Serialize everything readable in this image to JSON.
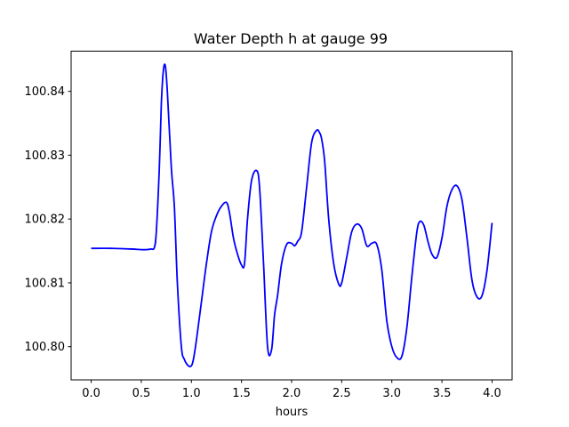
{
  "chart_data": {
    "type": "line",
    "title": "Water Depth h at gauge 99",
    "xlabel": "hours",
    "ylabel": "",
    "xlim": [
      -0.2,
      4.2
    ],
    "ylim": [
      100.7948,
      100.8463
    ],
    "xticks": [
      0.0,
      0.5,
      1.0,
      1.5,
      2.0,
      2.5,
      3.0,
      3.5,
      4.0
    ],
    "xtick_labels": [
      "0.0",
      "0.5",
      "1.0",
      "1.5",
      "2.0",
      "2.5",
      "3.0",
      "3.5",
      "4.0"
    ],
    "yticks": [
      100.8,
      100.81,
      100.82,
      100.83,
      100.84
    ],
    "ytick_labels": [
      "100.80",
      "100.81",
      "100.82",
      "100.83",
      "100.84"
    ],
    "grid": false,
    "legend": "none",
    "series": [
      {
        "color": "#0000ff",
        "x": [
          0.0,
          0.2,
          0.4,
          0.5,
          0.55,
          0.6,
          0.63,
          0.65,
          0.68,
          0.7,
          0.72,
          0.74,
          0.76,
          0.8,
          0.83,
          0.86,
          0.9,
          0.93,
          0.97,
          1.0,
          1.02,
          1.05,
          1.1,
          1.15,
          1.2,
          1.25,
          1.3,
          1.35,
          1.38,
          1.42,
          1.46,
          1.5,
          1.53,
          1.56,
          1.6,
          1.65,
          1.68,
          1.72,
          1.76,
          1.8,
          1.83,
          1.86,
          1.9,
          1.95,
          2.0,
          2.03,
          2.06,
          2.1,
          2.15,
          2.2,
          2.25,
          2.28,
          2.3,
          2.33,
          2.37,
          2.42,
          2.47,
          2.5,
          2.55,
          2.6,
          2.65,
          2.7,
          2.75,
          2.8,
          2.85,
          2.9,
          2.95,
          3.0,
          3.05,
          3.1,
          3.15,
          3.2,
          3.25,
          3.28,
          3.32,
          3.36,
          3.4,
          3.45,
          3.5,
          3.55,
          3.6,
          3.65,
          3.7,
          3.75,
          3.8,
          3.85,
          3.9,
          3.95,
          4.0
        ],
        "y": [
          100.8154,
          100.8154,
          100.8153,
          100.8152,
          100.8152,
          100.8153,
          100.8155,
          100.818,
          100.828,
          100.838,
          100.8432,
          100.844,
          100.84,
          100.828,
          100.822,
          100.81,
          100.8,
          100.798,
          100.797,
          100.797,
          100.798,
          100.801,
          100.807,
          100.813,
          100.818,
          100.8205,
          100.822,
          100.8226,
          100.821,
          100.817,
          100.8145,
          100.8128,
          100.813,
          100.82,
          100.826,
          100.8276,
          100.825,
          100.813,
          100.8,
          100.7995,
          100.805,
          100.808,
          100.813,
          100.816,
          100.8162,
          100.8158,
          100.8165,
          100.818,
          100.825,
          100.832,
          100.8339,
          100.8335,
          100.8325,
          100.829,
          100.82,
          100.813,
          100.8098,
          100.81,
          100.814,
          100.818,
          100.8192,
          100.8185,
          100.8158,
          100.8162,
          100.816,
          100.812,
          100.804,
          100.8,
          100.7983,
          100.7985,
          100.803,
          100.811,
          100.818,
          100.8196,
          100.819,
          100.8165,
          100.8145,
          100.814,
          100.817,
          100.822,
          100.8246,
          100.8252,
          100.823,
          100.817,
          100.8104,
          100.8078,
          100.808,
          100.812,
          100.8194
        ]
      }
    ]
  }
}
